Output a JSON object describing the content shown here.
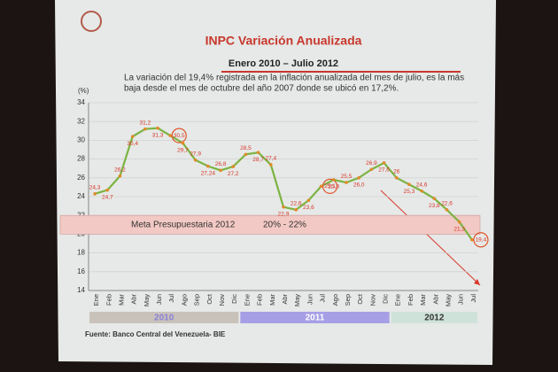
{
  "chart_data": {
    "type": "line",
    "title": "INPC Variación Anualizada",
    "subtitle": "Enero 2010 – Julio 2012",
    "note_lines": [
      "La variación del 19,4% registrada en la inflación anualizada del mes de julio, es la más",
      "baja desde el mes de octubre del año 2007 donde se ubicó en 17,2%."
    ],
    "y_label": "(%)",
    "categories": [
      "Ene",
      "Feb",
      "Mar",
      "Abr",
      "May",
      "Jun",
      "Jul",
      "Ago",
      "Sep",
      "Oct",
      "Nov",
      "Dic",
      "Ene",
      "Feb",
      "Mar",
      "Abr",
      "May",
      "Jun",
      "Jul",
      "Ago",
      "Sep",
      "Oct",
      "Nov",
      "Dic",
      "Ene",
      "Feb",
      "Mar",
      "Abr",
      "May",
      "Jun",
      "Jul"
    ],
    "years": [
      {
        "label": "2010",
        "color": "#c9c2bb",
        "text_color": "#8a7fd6"
      },
      {
        "label": "2011",
        "color": "#a79fe6",
        "text_color": "#ffffff"
      },
      {
        "label": "2012",
        "color": "#cfe2da",
        "text_color": "#333333"
      }
    ],
    "year_spans": [
      [
        0,
        11
      ],
      [
        12,
        23
      ],
      [
        24,
        30
      ]
    ],
    "series": [
      {
        "name": "INPC",
        "color": "#7cb342",
        "values": [
          24.3,
          24.7,
          26.2,
          30.4,
          31.2,
          31.3,
          30.5,
          29.7,
          27.9,
          27.24,
          26.8,
          27.2,
          28.5,
          28.7,
          27.4,
          22.9,
          22.6,
          23.6,
          25.1,
          25.8,
          25.5,
          26.0,
          26.9,
          27.6,
          26,
          25.3,
          24.6,
          23.8,
          22.6,
          21.3,
          19.4
        ],
        "value_labels": [
          "24,3",
          "24,7",
          "26,2",
          "30,4",
          "31,2",
          "31,3",
          "30,5",
          "29,7",
          "27,9",
          "27,24",
          "26,8",
          "27,2",
          "28,5",
          "28,7",
          "27,4",
          "22,9",
          "22,6",
          "23,6",
          "25,1",
          "25,8",
          "25,5",
          "26,0",
          "26,9",
          "27,6",
          "26",
          "25,3",
          "24,6",
          "23,8",
          "22,6",
          "21,3",
          "19,4"
        ]
      }
    ],
    "highlighted": [
      6,
      18,
      30
    ],
    "target_band": {
      "label": "Meta Presupuestaria 2012",
      "range_label": "20% - 22%",
      "range": [
        20,
        22
      ],
      "color": "#f2c9c4"
    },
    "ylim": [
      14,
      34
    ],
    "yticks": [
      14,
      16,
      18,
      20,
      22,
      24,
      26,
      28,
      30,
      32,
      34
    ],
    "grid": true,
    "source": "Fuente: Banco Central del Venezuela- BIE"
  }
}
